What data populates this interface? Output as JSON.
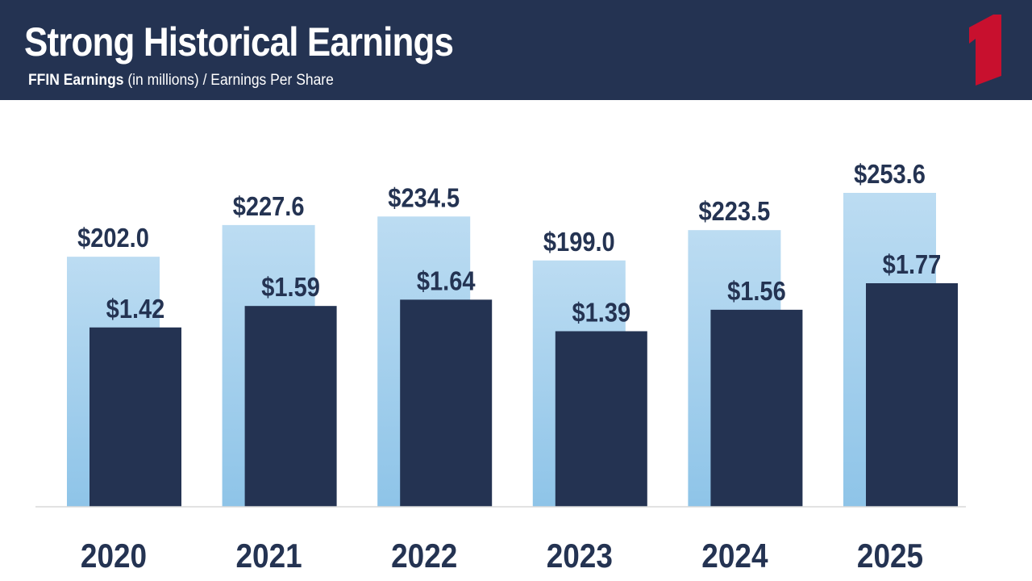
{
  "header": {
    "title": "Strong Historical Earnings",
    "subtitle_bold": "FFIN Earnings",
    "subtitle_rest": " (in millions) / Earnings Per Share",
    "logo_icon": "number-one-logo-icon",
    "background": "#243352",
    "logo_color": "#c8102e"
  },
  "chart_data": {
    "type": "bar",
    "categories": [
      "2020",
      "2021",
      "2022",
      "2023",
      "2024",
      "2025"
    ],
    "series": [
      {
        "values": [
          202.0,
          227.6,
          234.5,
          199.0,
          223.5,
          253.6
        ],
        "labels": [
          "$202.0",
          "$227.6",
          "$234.5",
          "$199.0",
          "$223.5",
          "$253.6"
        ],
        "color_top": "#bcdcf2",
        "color_bottom": "#8ec4e8"
      },
      {
        "values": [
          1.42,
          1.59,
          1.64,
          1.39,
          1.56,
          1.77
        ],
        "labels": [
          "$1.42",
          "$1.59",
          "$1.64",
          "$1.39",
          "$1.56",
          "$1.77"
        ],
        "color": "#243352"
      }
    ],
    "earnings_axis_max": 253.6,
    "eps_axis_max": 1.77,
    "grid": false,
    "legend": "none"
  }
}
